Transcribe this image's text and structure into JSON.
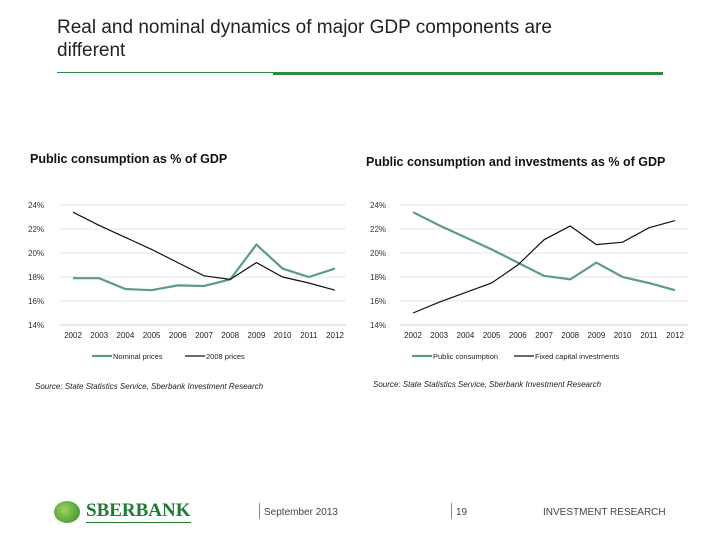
{
  "title": "Real and nominal dynamics of major GDP components are different",
  "colors": {
    "green": "#5e9c7e",
    "black": "#111111",
    "accent": "#2e8b3e"
  },
  "chart_data": [
    {
      "type": "line",
      "title": "Public consumption as % of GDP",
      "categories": [
        "2002",
        "2003",
        "2004",
        "2005",
        "2006",
        "2007",
        "2008",
        "2009",
        "2010",
        "2011",
        "2012"
      ],
      "yticks": [
        "24%",
        "22%",
        "20%",
        "18%",
        "16%",
        "14%"
      ],
      "ylim": [
        14,
        24
      ],
      "grid": true,
      "legend": "bottom",
      "series": [
        {
          "name": "Nominal prices",
          "color": "#5e9c7e",
          "values": [
            17.9,
            17.9,
            17.0,
            16.9,
            17.3,
            17.25,
            17.8,
            20.7,
            18.7,
            18.0,
            18.7
          ]
        },
        {
          "name": "2008 prices",
          "color": "#111111",
          "values": [
            23.4,
            22.3,
            21.3,
            20.3,
            19.2,
            18.1,
            17.8,
            19.2,
            18.0,
            17.5,
            16.9
          ]
        }
      ],
      "source": "Source: State Statistics Service, Sberbank Investment Research"
    },
    {
      "type": "line",
      "title": "Public consumption and investments as % of GDP",
      "categories": [
        "2002",
        "2003",
        "2004",
        "2005",
        "2006",
        "2007",
        "2008",
        "2009",
        "2010",
        "2011",
        "2012"
      ],
      "yticks": [
        "24%",
        "22%",
        "20%",
        "18%",
        "16%",
        "14%"
      ],
      "ylim": [
        14,
        24
      ],
      "grid": true,
      "legend": "bottom",
      "series": [
        {
          "name": "Public consumption",
          "color": "#5e9c7e",
          "values": [
            23.4,
            22.3,
            21.3,
            20.3,
            19.2,
            18.1,
            17.8,
            19.2,
            18.0,
            17.5,
            16.9
          ]
        },
        {
          "name": "Fixed capital investments",
          "color": "#111111",
          "values": [
            15.0,
            15.9,
            16.7,
            17.5,
            19.0,
            21.1,
            22.25,
            20.7,
            20.9,
            22.1,
            22.7
          ]
        }
      ],
      "source": "Source: State Statistics Service, Sberbank Investment Research"
    }
  ],
  "footer": {
    "logo": "SBERBANK",
    "date": "September 2013",
    "page": "19",
    "label": "INVESTMENT RESEARCH"
  }
}
